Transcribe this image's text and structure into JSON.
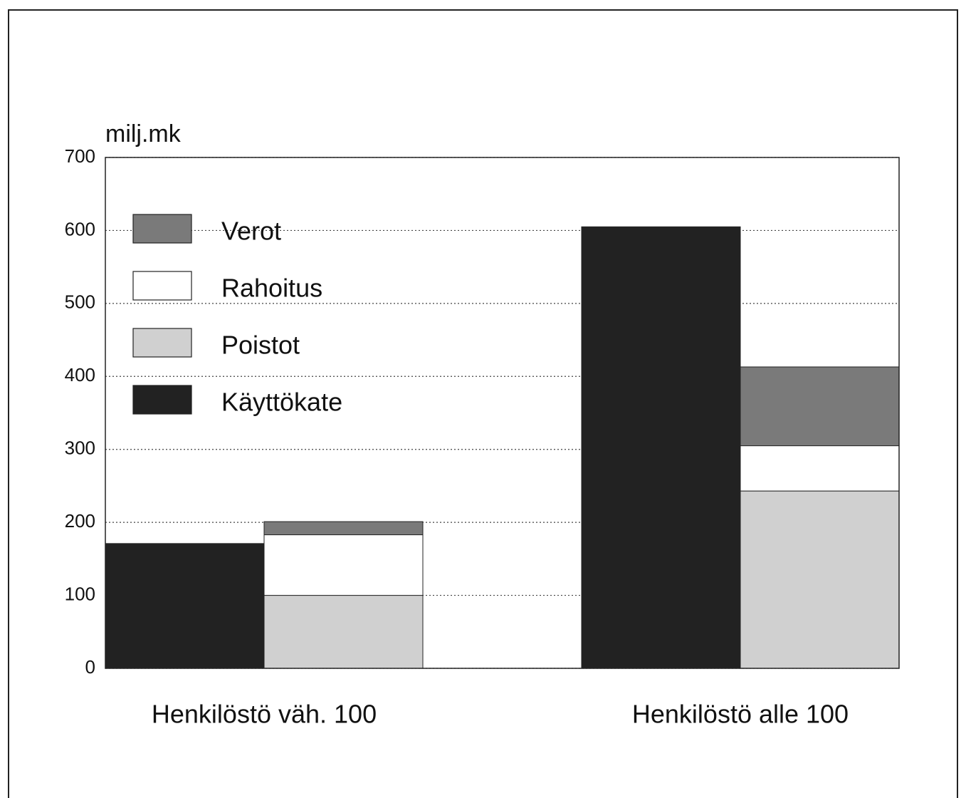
{
  "chart_data": {
    "type": "bar",
    "y_label": "milj.mk",
    "categories": [
      "Henkilöstö väh. 100",
      "Henkilöstö alle 100"
    ],
    "series": [
      {
        "name": "Käyttökate",
        "color": "#222222",
        "values": [
          171,
          605
        ]
      },
      {
        "name": "Poistot",
        "color": "#d0d0d0",
        "values": [
          100,
          243
        ]
      },
      {
        "name": "Rahoitus",
        "color": "#ffffff",
        "values": [
          83,
          62
        ]
      },
      {
        "name": "Verot",
        "color": "#7a7a7a",
        "values": [
          18,
          108
        ]
      }
    ],
    "ylim": [
      0,
      700
    ],
    "yticks": [
      0,
      100,
      200,
      300,
      400,
      500,
      600,
      700
    ],
    "grid": true,
    "legend": "upper left"
  }
}
